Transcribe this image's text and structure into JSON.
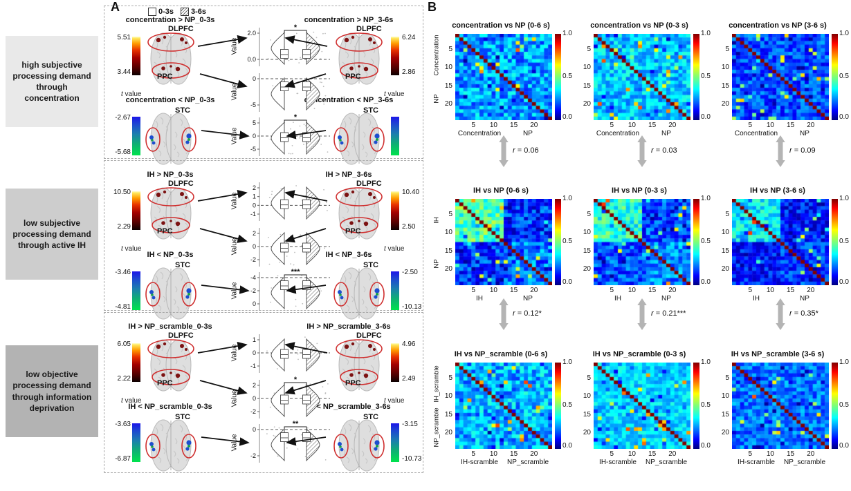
{
  "figure": {
    "panel_a_label": "A",
    "panel_b_label": "B"
  },
  "legend": {
    "items": [
      {
        "label": "0-3s",
        "swatch": "open"
      },
      {
        "label": "3-6s",
        "swatch": "hatched"
      }
    ]
  },
  "demand_boxes": [
    {
      "text": "high subjective\nprocessing demand\nthrough\nconcentration",
      "bg": "#e9e9e9"
    },
    {
      "text": "low subjective\nprocessing demand\nthrough active IH",
      "bg": "#cdcdcd"
    },
    {
      "text": "low objective\nprocessing demand\nthrough information\ndeprivation",
      "bg": "#b3b3b3"
    }
  ],
  "panel_a": {
    "t_value_label": "t value",
    "value_axis_label": "Value",
    "sections": [
      {
        "brains": [
          {
            "title": "concentration > NP_0-3s",
            "regions": [
              "DLPFC",
              "PPC"
            ],
            "polarity": "pos",
            "cbar_max": "5.51",
            "cbar_min": "3.44"
          },
          {
            "title": "concentration > NP_3-6s",
            "regions": [
              "DLPFC",
              "PPC"
            ],
            "polarity": "pos",
            "cbar_max": "6.24",
            "cbar_min": "2.86"
          },
          {
            "title": "concentration < NP_0-3s",
            "regions": [
              "STC"
            ],
            "polarity": "neg",
            "cbar_max": "-2.67",
            "cbar_min": "-5.68"
          },
          {
            "title": "concentration < NP_3-6s",
            "regions": [
              "STC"
            ],
            "polarity": "neg",
            "cbar_max": "",
            "cbar_min": ""
          }
        ],
        "violins": [
          {
            "ticks": [
              "2.0",
              "0.0"
            ],
            "zero_index": 1,
            "sig": "*"
          },
          {
            "ticks": [
              "0",
              "-5"
            ],
            "zero_index": 0,
            "sig": ""
          },
          {
            "ticks": [
              "5",
              "0",
              "-5"
            ],
            "zero_index": 1,
            "sig": "*"
          }
        ]
      },
      {
        "brains": [
          {
            "title": "IH > NP_0-3s",
            "regions": [
              "DLPFC",
              "PPC"
            ],
            "polarity": "pos",
            "cbar_max": "10.50",
            "cbar_min": "2.29"
          },
          {
            "title": "IH > NP_3-6s",
            "regions": [
              "DLPFC",
              "PPC"
            ],
            "polarity": "pos",
            "cbar_max": "10.40",
            "cbar_min": "2.50"
          },
          {
            "title": "IH < NP_0-3s",
            "regions": [
              "STC"
            ],
            "polarity": "neg",
            "cbar_max": "-3.46",
            "cbar_min": "-4.81"
          },
          {
            "title": "IH < NP_3-6s",
            "regions": [
              "STC"
            ],
            "polarity": "neg",
            "cbar_max": "-2.50",
            "cbar_min": "-10.13"
          }
        ],
        "violins": [
          {
            "ticks": [
              "2",
              "1",
              "0",
              "-1"
            ],
            "zero_index": 2,
            "sig": ""
          },
          {
            "ticks": [
              "2",
              "0",
              "-2"
            ],
            "zero_index": 1,
            "sig": ""
          },
          {
            "ticks": [
              "-4",
              "-2",
              "0"
            ],
            "zero_index": 0,
            "sig": "***"
          }
        ]
      },
      {
        "brains": [
          {
            "title": "IH > NP_scramble_0-3s",
            "regions": [
              "DLPFC",
              "PPC"
            ],
            "polarity": "pos",
            "cbar_max": "6.05",
            "cbar_min": "2.22"
          },
          {
            "title": "IH > NP_scramble_3-6s",
            "regions": [
              "DLPFC",
              "PPC"
            ],
            "polarity": "pos",
            "cbar_max": "4.96",
            "cbar_min": "2.49"
          },
          {
            "title": "IH < NP_scramble_0-3s",
            "regions": [
              "STC"
            ],
            "polarity": "neg",
            "cbar_max": "-3.63",
            "cbar_min": "-6.87"
          },
          {
            "title": "IH < NP_scramble_3-6s",
            "regions": [
              "STC"
            ],
            "polarity": "neg",
            "cbar_max": "-3.15",
            "cbar_min": "-10.73"
          }
        ],
        "violins": [
          {
            "ticks": [
              "1",
              "0",
              "-1"
            ],
            "zero_index": 1,
            "sig": ""
          },
          {
            "ticks": [
              "2",
              "0",
              "-2"
            ],
            "zero_index": 1,
            "sig": "*"
          },
          {
            "ticks": [
              "0",
              "-2"
            ],
            "zero_index": 0,
            "sig": "**"
          }
        ]
      }
    ]
  },
  "panel_b": {
    "colorbar_ticks": [
      "1.0",
      "0.5",
      "0.0"
    ],
    "correlations": [
      [
        {
          "prefix": "r",
          "rest": " = 0.06"
        },
        {
          "prefix": "r",
          "rest": " = 0.03"
        },
        {
          "prefix": "r",
          "rest": " = 0.09"
        }
      ],
      [
        {
          "prefix": "r",
          "rest": " = 0.12*"
        },
        {
          "prefix": "r",
          "rest": " = 0.21***"
        },
        {
          "prefix": "r",
          "rest": " = 0.35*"
        }
      ]
    ]
  },
  "chart_data": [
    {
      "type": "heatmap",
      "title": "concentration vs NP (0-6 s)",
      "n": 24,
      "axis_ticks": [
        "5",
        "10",
        "15",
        "20"
      ],
      "ylabels": [
        "Concentration",
        "NP"
      ],
      "xlabels": [
        "Concentration",
        "NP"
      ],
      "colormap": "jet",
      "value_range": [
        0.0,
        1.0
      ],
      "diagonal_value": 1.0,
      "values_summary": {
        "base": 0.28,
        "noise": 0.12,
        "blocks": null
      }
    },
    {
      "type": "heatmap",
      "title": "concentration vs NP (0-3 s)",
      "n": 24,
      "axis_ticks": [
        "5",
        "10",
        "15",
        "20"
      ],
      "ylabels": [],
      "xlabels": [
        "Concentration",
        "NP"
      ],
      "colormap": "jet",
      "value_range": [
        0.0,
        1.0
      ],
      "diagonal_value": 1.0,
      "values_summary": {
        "base": 0.32,
        "noise": 0.1,
        "blocks": null
      }
    },
    {
      "type": "heatmap",
      "title": "concentration vs NP (3-6 s)",
      "n": 24,
      "axis_ticks": [
        "5",
        "10",
        "15",
        "20"
      ],
      "ylabels": [],
      "xlabels": [
        "Concentration",
        "NP"
      ],
      "colormap": "jet",
      "value_range": [
        0.0,
        1.0
      ],
      "diagonal_value": 1.0,
      "values_summary": {
        "base": 0.2,
        "noise": 0.1,
        "blocks": null
      }
    },
    {
      "type": "heatmap",
      "title": "IH vs NP (0-6 s)",
      "n": 24,
      "axis_ticks": [
        "5",
        "10",
        "15",
        "20"
      ],
      "ylabels": [
        "IH",
        "NP"
      ],
      "xlabels": [
        "IH",
        "NP"
      ],
      "colormap": "jet",
      "value_range": [
        0.0,
        1.0
      ],
      "diagonal_value": 1.0,
      "values_summary": {
        "base": null,
        "noise": 0.12,
        "blocks": {
          "split": 12,
          "tl": 0.45,
          "tr": 0.17,
          "bl": 0.17,
          "br": 0.24
        }
      }
    },
    {
      "type": "heatmap",
      "title": "IH vs NP (0-3 s)",
      "n": 24,
      "axis_ticks": [
        "5",
        "10",
        "15",
        "20"
      ],
      "ylabels": [],
      "xlabels": [
        "IH",
        "NP"
      ],
      "colormap": "jet",
      "value_range": [
        0.0,
        1.0
      ],
      "diagonal_value": 1.0,
      "values_summary": {
        "base": null,
        "noise": 0.11,
        "blocks": {
          "split": 12,
          "tl": 0.42,
          "tr": 0.2,
          "bl": 0.2,
          "br": 0.26
        }
      }
    },
    {
      "type": "heatmap",
      "title": "IH vs NP (3-6 s)",
      "n": 24,
      "axis_ticks": [
        "5",
        "10",
        "15",
        "20"
      ],
      "ylabels": [],
      "xlabels": [
        "IH",
        "NP"
      ],
      "colormap": "jet",
      "value_range": [
        0.0,
        1.0
      ],
      "diagonal_value": 1.0,
      "values_summary": {
        "base": null,
        "noise": 0.1,
        "blocks": {
          "split": 12,
          "tl": 0.36,
          "tr": 0.14,
          "bl": 0.14,
          "br": 0.18
        }
      }
    },
    {
      "type": "heatmap",
      "title": "IH vs NP_scramble (0-6 s)",
      "n": 24,
      "axis_ticks": [
        "5",
        "10",
        "15",
        "20"
      ],
      "ylabels": [
        "IH_scramble",
        "NP_scramble"
      ],
      "xlabels": [
        "IH-scramble",
        "NP_scramble"
      ],
      "colormap": "jet",
      "value_range": [
        0.0,
        1.0
      ],
      "diagonal_value": 1.0,
      "values_summary": {
        "base": 0.3,
        "noise": 0.12,
        "blocks": null
      }
    },
    {
      "type": "heatmap",
      "title": "IH vs NP_scramble (0-3 s)",
      "n": 24,
      "axis_ticks": [
        "5",
        "10",
        "15",
        "20"
      ],
      "ylabels": [],
      "xlabels": [
        "IH-scramble",
        "NP_scramble"
      ],
      "colormap": "jet",
      "value_range": [
        0.0,
        1.0
      ],
      "diagonal_value": 1.0,
      "values_summary": {
        "base": 0.33,
        "noise": 0.08,
        "blocks": null
      }
    },
    {
      "type": "heatmap",
      "title": "IH vs NP_scramble (3-6 s)",
      "n": 24,
      "axis_ticks": [
        "5",
        "10",
        "15",
        "20"
      ],
      "ylabels": [],
      "xlabels": [
        "IH-scramble",
        "NP_scramble"
      ],
      "colormap": "jet",
      "value_range": [
        0.0,
        1.0
      ],
      "diagonal_value": 1.0,
      "values_summary": {
        "base": 0.24,
        "noise": 0.09,
        "blocks": null
      }
    }
  ]
}
